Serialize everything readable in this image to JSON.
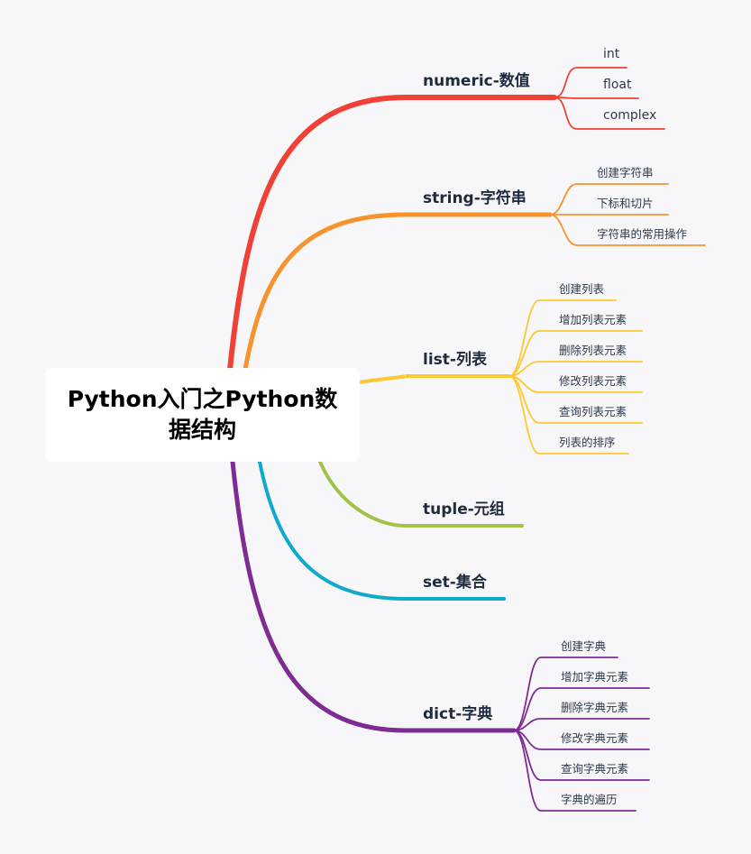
{
  "root": {
    "title": "Python入门之Python数据结构"
  },
  "branches": [
    {
      "label": "numeric-数值",
      "color": "#ef4136",
      "children": [
        "int",
        "float",
        "complex"
      ]
    },
    {
      "label": "string-字符串",
      "color": "#f7922c",
      "children": [
        "创建字符串",
        "下标和切片",
        "字符串的常用操作"
      ]
    },
    {
      "label": "list-列表",
      "color": "#fdc832",
      "children": [
        "创建列表",
        "增加列表元素",
        "删除列表元素",
        "修改列表元素",
        "查询列表元素",
        "列表的排序"
      ]
    },
    {
      "label": "tuple-元组",
      "color": "#a3c14a",
      "children": []
    },
    {
      "label": "set-集合",
      "color": "#0fa9cc",
      "children": []
    },
    {
      "label": "dict-字典",
      "color": "#7e2b93",
      "children": [
        "创建字典",
        "增加字典元素",
        "删除字典元素",
        "修改字典元素",
        "查询字典元素",
        "字典的遍历"
      ]
    }
  ]
}
